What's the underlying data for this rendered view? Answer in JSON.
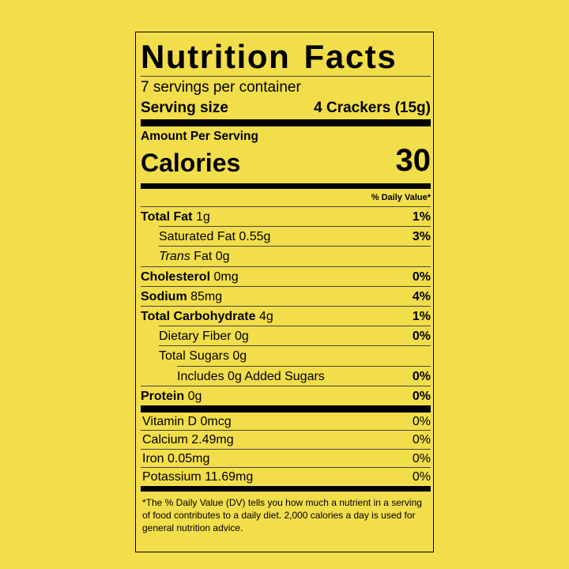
{
  "title": "Nutrition Facts",
  "servings": "7 servings per container",
  "serving_size": {
    "label": "Serving size",
    "value": "4 Crackers (15g)"
  },
  "amount_per_serving": "Amount Per Serving",
  "calories": {
    "label": "Calories",
    "value": "30"
  },
  "daily_value_header": "% Daily Value*",
  "nutrients": [
    {
      "name": [
        {
          "text": "Total Fat"
        }
      ],
      "amount": "1g",
      "dv": "1%",
      "bold": true,
      "indent": 0
    },
    {
      "name": [
        {
          "text": "Saturated Fat"
        }
      ],
      "amount": "0.55g",
      "dv": "3%",
      "bold": false,
      "indent": 1
    },
    {
      "name": [
        {
          "text": "Trans",
          "italic": true
        },
        {
          "text": "Fat"
        }
      ],
      "amount": "0g",
      "bold": false,
      "indent": 1
    },
    {
      "name": [
        {
          "text": "Cholesterol"
        }
      ],
      "amount": "0mg",
      "dv": "0%",
      "bold": true,
      "indent": 0
    },
    {
      "name": [
        {
          "text": "Sodium"
        }
      ],
      "amount": "85mg",
      "dv": "4%",
      "bold": true,
      "indent": 0
    },
    {
      "name": [
        {
          "text": "Total Carbohydrate"
        }
      ],
      "amount": "4g",
      "dv": "1%",
      "bold": true,
      "indent": 0
    },
    {
      "name": [
        {
          "text": "Dietary Fiber"
        }
      ],
      "amount": "0g",
      "dv": "0%",
      "bold": false,
      "indent": 1
    },
    {
      "name": [
        {
          "text": "Total Sugars"
        }
      ],
      "amount": "0g",
      "bold": false,
      "indent": 1
    },
    {
      "name": [
        {
          "text": "Includes 0g Added Sugars"
        }
      ],
      "dv": "0%",
      "bold": false,
      "indent": 2
    },
    {
      "name": [
        {
          "text": "Protein"
        }
      ],
      "amount": "0g",
      "dv": "0%",
      "bold": true,
      "indent": 0
    }
  ],
  "vitamins": [
    {
      "name": "Vitamin D 0mcg",
      "dv": "0%"
    },
    {
      "name": "Calcium 2.49mg",
      "dv": "0%"
    },
    {
      "name": "Iron 0.05mg",
      "dv": "0%"
    },
    {
      "name": "Potassium 11.69mg",
      "dv": "0%"
    }
  ],
  "footnote": "*The % Daily Value (DV) tells you how much a nutrient in a serving of food contributes to a daily diet. 2,000 calories a day is used for general nutrition advice."
}
